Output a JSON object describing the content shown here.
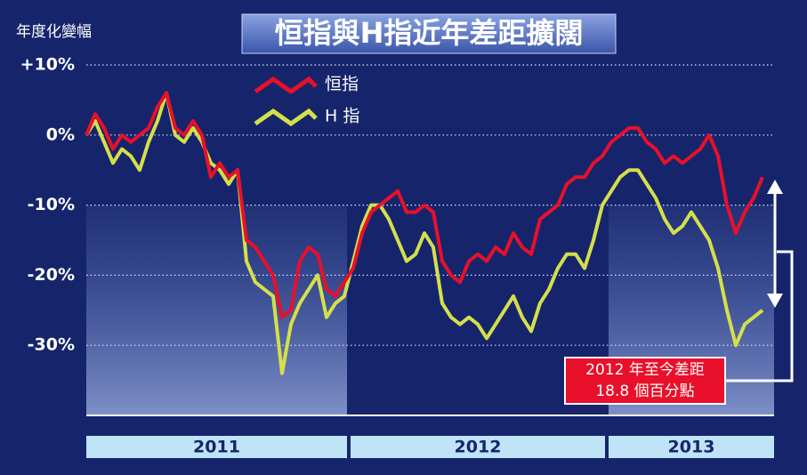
{
  "chart_data": {
    "type": "line",
    "title": "恒指與H指近年差距擴闊",
    "y_label": "年度化變幅",
    "categories": [
      "2011",
      null,
      null,
      null,
      null,
      null,
      null,
      null,
      null,
      null,
      null,
      null,
      null,
      null,
      null,
      null,
      null,
      null,
      null,
      null,
      null,
      null,
      null,
      null,
      null,
      null,
      null,
      null,
      null,
      null,
      "2012",
      null,
      null,
      null,
      null,
      null,
      null,
      null,
      null,
      null,
      null,
      null,
      null,
      null,
      null,
      null,
      null,
      null,
      null,
      null,
      null,
      null,
      null,
      null,
      null,
      null,
      null,
      null,
      null,
      "2013",
      null,
      null,
      null,
      null,
      null,
      null,
      null,
      null,
      null,
      null,
      null,
      null,
      null,
      null,
      null,
      null,
      null
    ],
    "series": [
      {
        "name": "恒指",
        "color": "#e8102a",
        "values": [
          0,
          3,
          1,
          -2,
          0,
          -1,
          0,
          1,
          4,
          6,
          1,
          0,
          2,
          0,
          -6,
          -4,
          -6,
          -5,
          -15,
          -16,
          -18,
          -20,
          -26,
          -25,
          -18,
          -16,
          -17,
          -22,
          -23,
          -21,
          -19,
          -14,
          -11,
          -10,
          -9,
          -8,
          -11,
          -11,
          -10,
          -11,
          -18,
          -20,
          -21,
          -18,
          -17,
          -18,
          -16,
          -17,
          -14,
          -16,
          -17,
          -12,
          -11,
          -10,
          -7,
          -6,
          -6,
          -4,
          -3,
          -1,
          0,
          1,
          1,
          -1,
          -2,
          -4,
          -3,
          -4,
          -3,
          -2,
          0,
          -3,
          -10,
          -14,
          -11,
          -9,
          -6
        ]
      },
      {
        "name": "H 指",
        "color": "#d4e04a",
        "values": [
          0,
          2,
          -1,
          -4,
          -2,
          -3,
          -5,
          -1,
          2,
          6,
          0,
          -1,
          1,
          -1,
          -4,
          -5,
          -7,
          -5,
          -18,
          -21,
          -22,
          -23,
          -34,
          -27,
          -24,
          -22,
          -20,
          -26,
          -24,
          -23,
          -18,
          -13,
          -10,
          -10,
          -12,
          -15,
          -18,
          -17,
          -14,
          -16,
          -24,
          -26,
          -27,
          -26,
          -27,
          -29,
          -27,
          -25,
          -23,
          -26,
          -28,
          -24,
          -22,
          -19,
          -17,
          -17,
          -19,
          -15,
          -10,
          -8,
          -6,
          -5,
          -5,
          -7,
          -9,
          -12,
          -14,
          -13,
          -11,
          -13,
          -15,
          -19,
          -25,
          -30,
          -27,
          -26,
          -25
        ]
      }
    ],
    "ylim": [
      -40,
      10
    ],
    "yticks": [
      {
        "value": 10,
        "label": "+10%"
      },
      {
        "value": 0,
        "label": "0%"
      },
      {
        "value": -10,
        "label": "-10%"
      },
      {
        "value": -20,
        "label": "-20%"
      },
      {
        "value": -30,
        "label": "-30%"
      }
    ],
    "grid": true,
    "annotation": [
      "2012 年至今差距",
      "18.8 個百分點"
    ]
  }
}
